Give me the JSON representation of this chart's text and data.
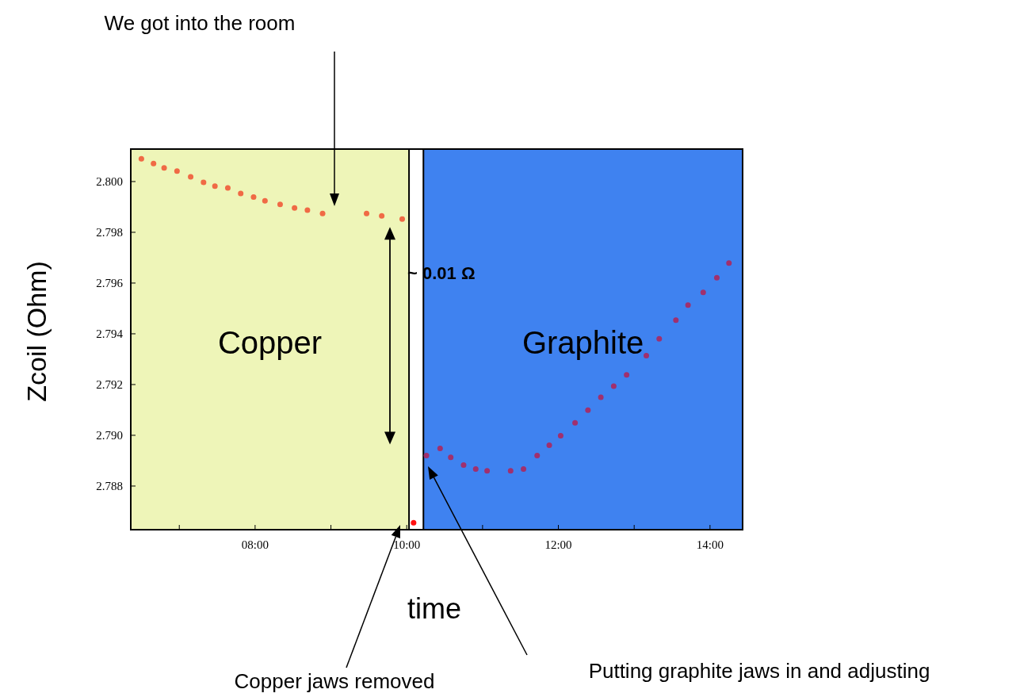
{
  "chart_data": {
    "type": "scatter",
    "xlabel": "time",
    "ylabel": "Zcoil (Ohm)",
    "xlim": [
      6.36,
      14.43
    ],
    "ylim": [
      2.78628,
      2.80128
    ],
    "xticks": [
      {
        "value": 7,
        "label": null
      },
      {
        "value": 8,
        "label": "08:00"
      },
      {
        "value": 9,
        "label": null
      },
      {
        "value": 10,
        "label": "10:00"
      },
      {
        "value": 11,
        "label": null
      },
      {
        "value": 12,
        "label": "12:00"
      },
      {
        "value": 13,
        "label": null
      },
      {
        "value": 14,
        "label": "14:00"
      }
    ],
    "yticks": [
      {
        "value": 2.788,
        "label": "2.788"
      },
      {
        "value": 2.79,
        "label": "2.790"
      },
      {
        "value": 2.792,
        "label": "2.792"
      },
      {
        "value": 2.794,
        "label": "2.794"
      },
      {
        "value": 2.796,
        "label": "2.796"
      },
      {
        "value": 2.798,
        "label": "2.798"
      },
      {
        "value": 2.8,
        "label": "2.800"
      }
    ],
    "bands": [
      {
        "axis": "x",
        "from": 6.36,
        "to": 10.03,
        "label": "Copper",
        "color": "#eef5b8"
      },
      {
        "axis": "x",
        "from": 10.22,
        "to": 14.43,
        "label": "Graphite",
        "color": "#3f82f0"
      }
    ],
    "marker": "circle",
    "grid": false,
    "series": [
      {
        "color": "#f06a45",
        "x": [
          6.5,
          6.66,
          6.8,
          6.97,
          7.15,
          7.32,
          7.47,
          7.64,
          7.81,
          7.98,
          8.13,
          8.33,
          8.52,
          8.69,
          8.89,
          9.47,
          9.67,
          9.94
        ],
        "values": [
          2.8009,
          2.80071,
          2.80054,
          2.80041,
          2.80019,
          2.79997,
          2.79982,
          2.79975,
          2.79953,
          2.79939,
          2.79924,
          2.7991,
          2.79896,
          2.79887,
          2.79874,
          2.79874,
          2.79865,
          2.79852
        ]
      },
      {
        "color": "#ff1010",
        "x": [
          10.09
        ],
        "values": [
          2.78655
        ]
      },
      {
        "color": "#a0306e",
        "x": [
          10.26,
          10.44,
          10.58,
          10.75,
          10.91,
          11.06,
          11.37,
          11.54,
          11.72,
          11.88,
          12.03,
          12.22,
          12.39,
          12.56,
          12.73,
          12.9,
          13.16,
          13.33,
          13.55,
          13.71,
          13.91,
          14.09,
          14.25
        ],
        "values": [
          2.7892,
          2.78948,
          2.78913,
          2.78883,
          2.78867,
          2.7886,
          2.7886,
          2.78867,
          2.7892,
          2.78961,
          2.78998,
          2.79049,
          2.79099,
          2.7915,
          2.79194,
          2.79238,
          2.79314,
          2.7938,
          2.79454,
          2.79513,
          2.79563,
          2.79621,
          2.79679
        ]
      }
    ],
    "annotations": [
      "We got into the room",
      "~ 0.01 Ω",
      "Copper jaws removed",
      "Putting graphite jaws in and adjusting"
    ]
  }
}
